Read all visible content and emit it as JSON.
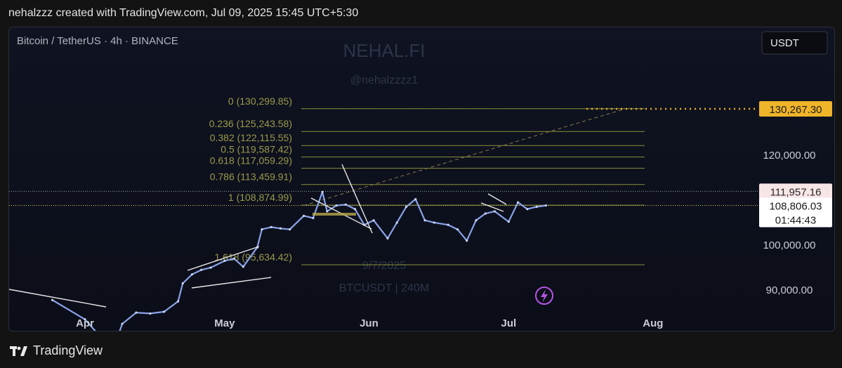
{
  "header": {
    "text": "nehalzzz created with TradingView.com, Jul 09, 2025 15:45 UTC+5:30"
  },
  "footer": {
    "brand": "TradingView"
  },
  "colors": {
    "candle": "#8aa2e8",
    "fib": "#8a8f3a",
    "fibText": "#9a9a4a",
    "currentPrice": "#e8e8e8",
    "target": "#f0b429",
    "resistance": "#f4a0a0"
  },
  "chart_data": {
    "type": "line",
    "symbol": "Bitcoin / TetherUS · 4h · BINANCE",
    "currency_button": "USDT",
    "watermark": {
      "name": "NEHAL.FI",
      "handle": "@nehalzzzz1",
      "date": "9/7/2025",
      "ticker": "BTCUSDT | 240M"
    },
    "x_ticks": [
      "Apr",
      "May",
      "Jun",
      "Jul",
      "Aug"
    ],
    "y_ticks": [
      90000,
      100000,
      120000
    ],
    "y_tick_labels": [
      "90,000.00",
      "100,000.00",
      "120,000.00"
    ],
    "fib_levels": [
      {
        "label": "0 (130,299.85)",
        "price": 130299.85
      },
      {
        "label": "0.236 (125,243.58)",
        "price": 125243.58
      },
      {
        "label": "0.382 (122,115.55)",
        "price": 122115.55
      },
      {
        "label": "0.5 (119,587.42)",
        "price": 119587.42
      },
      {
        "label": "0.618 (117,059.29)",
        "price": 117059.29
      },
      {
        "label": "0.786 (113,459.91)",
        "price": 113459.91
      },
      {
        "label": "1 (108,874.99)",
        "price": 108874.99
      },
      {
        "label": "1.618 (95,634.42)",
        "price": 95634.42
      }
    ],
    "price_tags": {
      "target": {
        "price": 130267.3,
        "label": "130,267.30"
      },
      "resistance": {
        "price": 111957.16,
        "label": "111,957.16"
      },
      "current": {
        "price": 108806.03,
        "label": "108,806.03",
        "countdown": "01:44:43"
      }
    },
    "series": [
      {
        "x": [
          "2025-03-25",
          "2025-04-01",
          "2025-04-07",
          "2025-04-09",
          "2025-04-12",
          "2025-04-15",
          "2025-04-18",
          "2025-04-21",
          "2025-04-22",
          "2025-04-24",
          "2025-04-26",
          "2025-04-28",
          "2025-05-01",
          "2025-05-03",
          "2025-05-05",
          "2025-05-08",
          "2025-05-09",
          "2025-05-11",
          "2025-05-13",
          "2025-05-15",
          "2025-05-18",
          "2025-05-20",
          "2025-05-22",
          "2025-05-23",
          "2025-05-25",
          "2025-05-27",
          "2025-05-29",
          "2025-05-31",
          "2025-06-02",
          "2025-06-05",
          "2025-06-07",
          "2025-06-09",
          "2025-06-11",
          "2025-06-13",
          "2025-06-15",
          "2025-06-18",
          "2025-06-20",
          "2025-06-22",
          "2025-06-24",
          "2025-06-26",
          "2025-06-28",
          "2025-07-01",
          "2025-07-03",
          "2025-07-05",
          "2025-07-07",
          "2025-07-09"
        ],
        "y": [
          87800,
          83500,
          76500,
          82500,
          85000,
          84800,
          85200,
          87500,
          91500,
          93500,
          94500,
          95000,
          96500,
          97000,
          95200,
          99500,
          103500,
          104000,
          103700,
          103500,
          106500,
          106000,
          111800,
          107500,
          108800,
          109000,
          108000,
          104500,
          105500,
          101500,
          105000,
          108500,
          110200,
          105500,
          105000,
          104500,
          103500,
          101000,
          105500,
          107000,
          107500,
          105200,
          109500,
          108000,
          108500,
          108806
        ]
      }
    ],
    "fib_anchor_start": {
      "x": "2025-05-18",
      "price": 108800
    },
    "projection_end": {
      "x": "2025-07-26",
      "price": 130267.3
    }
  }
}
